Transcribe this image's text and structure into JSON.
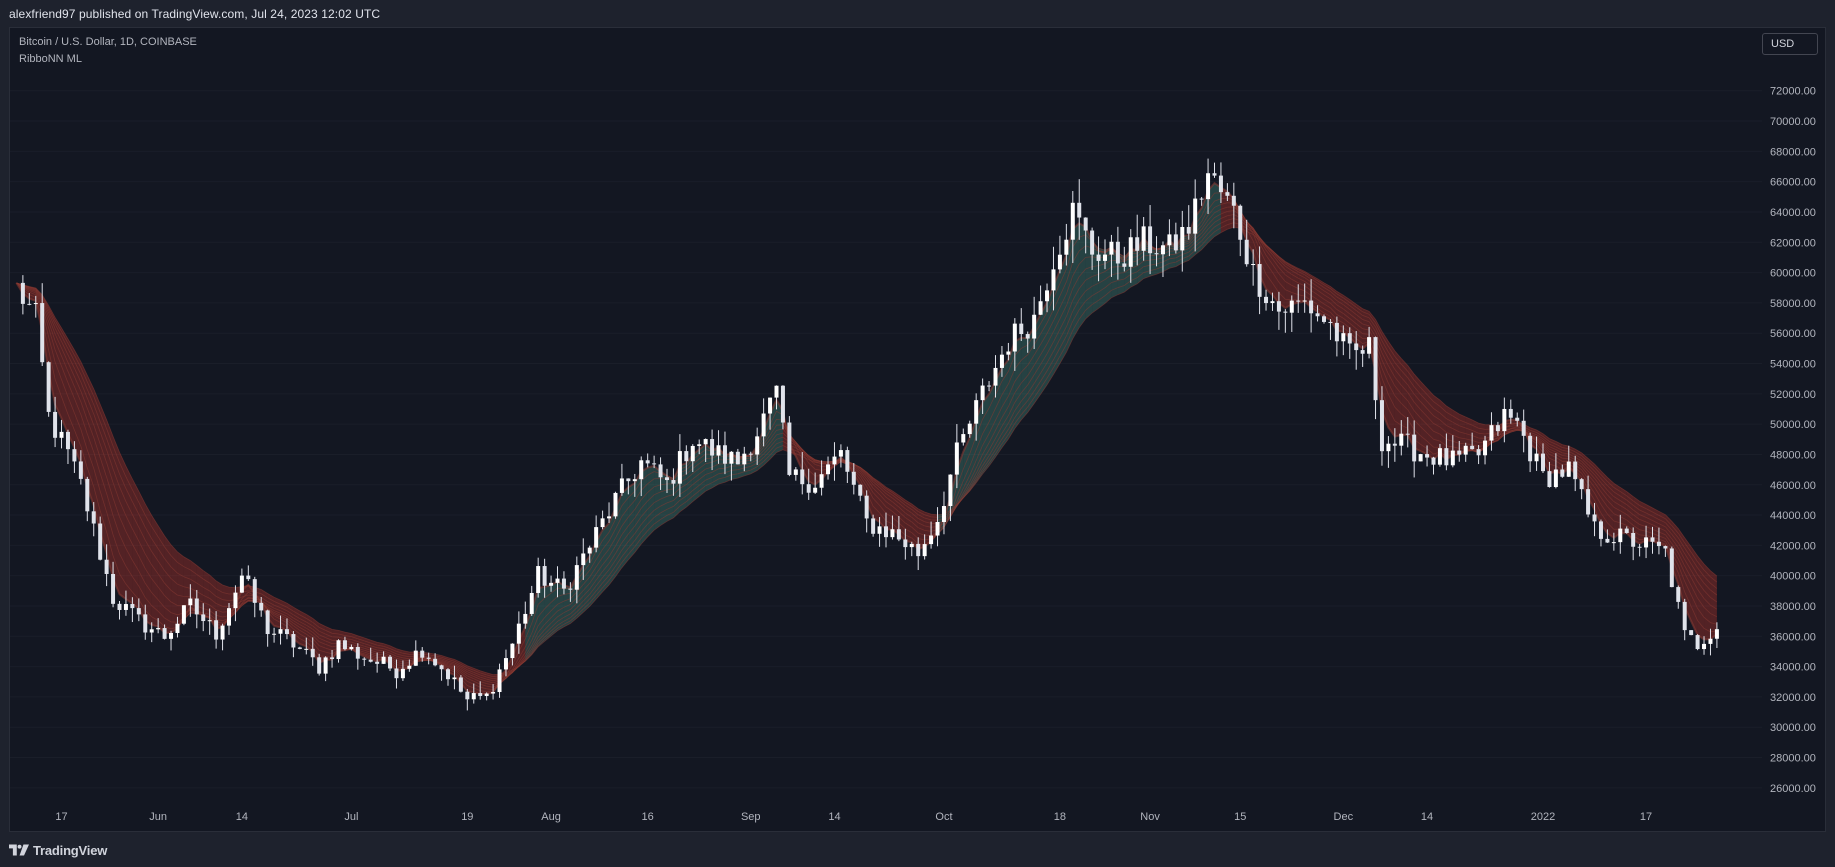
{
  "header": {
    "publish_line": "alexfriend97 published on TradingView.com, Jul 24, 2023 12:02 UTC"
  },
  "legend": {
    "symbol": "Bitcoin / U.S. Dollar, 1D, COINBASE",
    "indicator": "RibboNN ML"
  },
  "currency_button": {
    "label": "USD"
  },
  "footer": {
    "brand": "TradingView"
  },
  "colors": {
    "background": "#131722",
    "candle": "#e0e3eb",
    "ribbon_bearish": "#d93b2e",
    "ribbon_bullish": "#4f9a8a",
    "grid": "#1a1e29",
    "axis_text": "#b2b5be"
  },
  "chart_data": {
    "type": "candlestick",
    "xlabels": [
      "17",
      "Jun",
      "14",
      "Jul",
      "19",
      "Aug",
      "16",
      "Sep",
      "14",
      "Oct",
      "18",
      "Nov",
      "15",
      "Dec",
      "14",
      "2022",
      "17"
    ],
    "x_tick_days": [
      0,
      15,
      28,
      45,
      63,
      76,
      91,
      107,
      120,
      137,
      155,
      169,
      183,
      199,
      212,
      230,
      246
    ],
    "y_ticks": [
      26000,
      28000,
      30000,
      32000,
      34000,
      36000,
      38000,
      40000,
      42000,
      44000,
      46000,
      48000,
      50000,
      52000,
      54000,
      56000,
      58000,
      60000,
      62000,
      64000,
      66000,
      68000,
      70000,
      72000
    ],
    "ylim": [
      25000,
      73500
    ],
    "x_range_days": [
      -8,
      264
    ],
    "price_anchors": [
      [
        -7,
        59000
      ],
      [
        -4,
        57000
      ],
      [
        -2,
        50500
      ],
      [
        1,
        48000
      ],
      [
        3,
        46000
      ],
      [
        5,
        43000
      ],
      [
        8,
        38500
      ],
      [
        12,
        37000
      ],
      [
        16,
        36000
      ],
      [
        20,
        38000
      ],
      [
        24,
        36200
      ],
      [
        28,
        40000
      ],
      [
        32,
        36500
      ],
      [
        36,
        35500
      ],
      [
        40,
        34000
      ],
      [
        43,
        35500
      ],
      [
        47,
        34600
      ],
      [
        52,
        33800
      ],
      [
        56,
        35200
      ],
      [
        60,
        33500
      ],
      [
        63,
        31800
      ],
      [
        66,
        32000
      ],
      [
        70,
        35500
      ],
      [
        74,
        40000
      ],
      [
        78,
        39000
      ],
      [
        82,
        42000
      ],
      [
        86,
        45000
      ],
      [
        90,
        47500
      ],
      [
        94,
        46000
      ],
      [
        98,
        49000
      ],
      [
        102,
        48000
      ],
      [
        105,
        47500
      ],
      [
        108,
        49500
      ],
      [
        111,
        52000
      ],
      [
        113,
        46500
      ],
      [
        117,
        46200
      ],
      [
        121,
        48000
      ],
      [
        125,
        43500
      ],
      [
        129,
        42800
      ],
      [
        133,
        41500
      ],
      [
        136,
        43800
      ],
      [
        139,
        48000
      ],
      [
        143,
        52000
      ],
      [
        147,
        55500
      ],
      [
        151,
        57000
      ],
      [
        154,
        61000
      ],
      [
        157,
        64000
      ],
      [
        160,
        61500
      ],
      [
        164,
        61000
      ],
      [
        168,
        62000
      ],
      [
        172,
        61500
      ],
      [
        175,
        63000
      ],
      [
        178,
        66500
      ],
      [
        182,
        64000
      ],
      [
        185,
        60000
      ],
      [
        189,
        57500
      ],
      [
        193,
        58000
      ],
      [
        197,
        56500
      ],
      [
        200,
        54500
      ],
      [
        203,
        55000
      ],
      [
        205,
        49000
      ],
      [
        209,
        48500
      ],
      [
        212,
        48000
      ],
      [
        216,
        47500
      ],
      [
        220,
        48000
      ],
      [
        224,
        50500
      ],
      [
        226,
        50000
      ],
      [
        230,
        46500
      ],
      [
        234,
        47000
      ],
      [
        238,
        43000
      ],
      [
        242,
        42500
      ],
      [
        246,
        42000
      ],
      [
        249,
        41500
      ],
      [
        252,
        36000
      ],
      [
        254,
        35500
      ],
      [
        257,
        36800
      ]
    ],
    "ribbon_segments": [
      {
        "trend": "bearish",
        "from_day": -8,
        "to_day": 72
      },
      {
        "trend": "bullish",
        "from_day": 72,
        "to_day": 112
      },
      {
        "trend": "bearish",
        "from_day": 112,
        "to_day": 136
      },
      {
        "trend": "bullish",
        "from_day": 136,
        "to_day": 180
      },
      {
        "trend": "bearish",
        "from_day": 180,
        "to_day": 258
      }
    ]
  }
}
